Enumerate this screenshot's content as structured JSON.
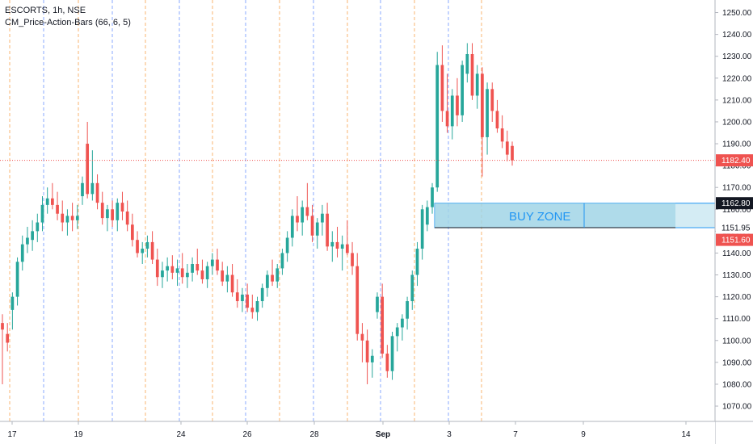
{
  "legend": {
    "symbol_line": "ESCORTS, 1h, NSE",
    "indicator_line": "CM_Price-Action-Bars (66, 6, 5)"
  },
  "colors": {
    "up": "#26a69a",
    "down": "#ef5350",
    "zone_fill": "#9fd4e6",
    "zone_border": "#2196f3",
    "last_price_tag": "#ef5350",
    "zone_top_tag": "#131722",
    "zone_mid_tag": "#ffffff",
    "zone_bottom_tag": "#ef5350",
    "session_line_orange": "#f57c00",
    "session_line_blue": "#2962ff"
  },
  "chart_data": {
    "type": "candlestick",
    "y_axis": {
      "min": 1063,
      "max": 1255,
      "ticks": [
        1070,
        1080,
        1090,
        1100,
        1110,
        1120,
        1130,
        1140,
        1150,
        1160,
        1170,
        1180,
        1190,
        1200,
        1210,
        1220,
        1230,
        1240,
        1250
      ]
    },
    "x_axis_labels": [
      "17",
      "19",
      "24",
      "26",
      "28",
      "Sep",
      "3",
      "7",
      "9",
      "14"
    ],
    "price_tags": {
      "last_price": "1182.40",
      "zone_top": "1162.80",
      "zone_mid": "1151.95",
      "zone_bottom": "1151.60"
    },
    "annotation": {
      "label": "BUY ZONE",
      "top": 1162.8,
      "bottom": 1151.6
    },
    "candles": [
      [
        1108,
        1112,
        1080,
        1105
      ],
      [
        1103,
        1108,
        1095,
        1099
      ],
      [
        1114,
        1122,
        1105,
        1120
      ],
      [
        1120,
        1138,
        1116,
        1136
      ],
      [
        1136,
        1148,
        1132,
        1144
      ],
      [
        1144,
        1152,
        1140,
        1147
      ],
      [
        1146,
        1155,
        1141,
        1150
      ],
      [
        1150,
        1158,
        1145,
        1154
      ],
      [
        1154,
        1166,
        1150,
        1162
      ],
      [
        1162,
        1170,
        1158,
        1165
      ],
      [
        1165,
        1172,
        1160,
        1162
      ],
      [
        1162,
        1168,
        1155,
        1158
      ],
      [
        1158,
        1164,
        1150,
        1154
      ],
      [
        1154,
        1160,
        1148,
        1157
      ],
      [
        1157,
        1163,
        1150,
        1155
      ],
      [
        1155,
        1162,
        1151,
        1157
      ],
      [
        1166,
        1175,
        1162,
        1172
      ],
      [
        1190,
        1200,
        1165,
        1167
      ],
      [
        1167,
        1187,
        1164,
        1172
      ],
      [
        1172,
        1176,
        1160,
        1163
      ],
      [
        1163,
        1168,
        1153,
        1156
      ],
      [
        1156,
        1162,
        1150,
        1160
      ],
      [
        1160,
        1164,
        1152,
        1155
      ],
      [
        1155,
        1165,
        1150,
        1163
      ],
      [
        1163,
        1168,
        1155,
        1159
      ],
      [
        1159,
        1164,
        1150,
        1153
      ],
      [
        1153,
        1158,
        1143,
        1146
      ],
      [
        1146,
        1150,
        1138,
        1140
      ],
      [
        1140,
        1145,
        1135,
        1142
      ],
      [
        1142,
        1148,
        1138,
        1145
      ],
      [
        1145,
        1150,
        1135,
        1137
      ],
      [
        1137,
        1142,
        1125,
        1129
      ],
      [
        1129,
        1136,
        1124,
        1132
      ],
      [
        1132,
        1138,
        1127,
        1134
      ],
      [
        1134,
        1139,
        1128,
        1131
      ],
      [
        1131,
        1137,
        1125,
        1133
      ],
      [
        1133,
        1140,
        1126,
        1129
      ],
      [
        1129,
        1135,
        1124,
        1131
      ],
      [
        1131,
        1138,
        1127,
        1135
      ],
      [
        1135,
        1142,
        1130,
        1132
      ],
      [
        1132,
        1137,
        1126,
        1128
      ],
      [
        1128,
        1136,
        1124,
        1134
      ],
      [
        1134,
        1140,
        1130,
        1137
      ],
      [
        1137,
        1142,
        1130,
        1132
      ],
      [
        1132,
        1136,
        1125,
        1127
      ],
      [
        1127,
        1134,
        1122,
        1130
      ],
      [
        1130,
        1135,
        1120,
        1122
      ],
      [
        1122,
        1128,
        1115,
        1118
      ],
      [
        1118,
        1124,
        1113,
        1121
      ],
      [
        1121,
        1126,
        1113,
        1115
      ],
      [
        1115,
        1121,
        1110,
        1113
      ],
      [
        1113,
        1120,
        1109,
        1118
      ],
      [
        1118,
        1126,
        1115,
        1124
      ],
      [
        1124,
        1132,
        1120,
        1130
      ],
      [
        1130,
        1137,
        1125,
        1127
      ],
      [
        1127,
        1135,
        1124,
        1133
      ],
      [
        1133,
        1142,
        1130,
        1140
      ],
      [
        1140,
        1150,
        1136,
        1147
      ],
      [
        1147,
        1160,
        1143,
        1157
      ],
      [
        1157,
        1166,
        1150,
        1154
      ],
      [
        1154,
        1164,
        1148,
        1161
      ],
      [
        1161,
        1172,
        1155,
        1157
      ],
      [
        1157,
        1162,
        1145,
        1148
      ],
      [
        1148,
        1156,
        1142,
        1154
      ],
      [
        1154,
        1162,
        1148,
        1158
      ],
      [
        1158,
        1163,
        1141,
        1143
      ],
      [
        1143,
        1150,
        1136,
        1145
      ],
      [
        1145,
        1152,
        1138,
        1142
      ],
      [
        1142,
        1148,
        1132,
        1144
      ],
      [
        1144,
        1155,
        1139,
        1140
      ],
      [
        1140,
        1145,
        1130,
        1134
      ],
      [
        1134,
        1140,
        1100,
        1103
      ],
      [
        1103,
        1108,
        1090,
        1100
      ],
      [
        1100,
        1105,
        1080,
        1090
      ],
      [
        1090,
        1096,
        1083,
        1093
      ],
      [
        1113,
        1122,
        1110,
        1120
      ],
      [
        1120,
        1126,
        1092,
        1094
      ],
      [
        1094,
        1098,
        1083,
        1086
      ],
      [
        1086,
        1104,
        1082,
        1102
      ],
      [
        1102,
        1108,
        1095,
        1106
      ],
      [
        1106,
        1112,
        1100,
        1110
      ],
      [
        1110,
        1120,
        1105,
        1118
      ],
      [
        1118,
        1132,
        1114,
        1130
      ],
      [
        1130,
        1145,
        1125,
        1142
      ],
      [
        1142,
        1162,
        1137,
        1160
      ],
      [
        1153,
        1164,
        1150,
        1161
      ],
      [
        1161,
        1172,
        1158,
        1170
      ],
      [
        1170,
        1232,
        1168,
        1226
      ],
      [
        1226,
        1235,
        1200,
        1205
      ],
      [
        1205,
        1222,
        1195,
        1198
      ],
      [
        1198,
        1215,
        1192,
        1212
      ],
      [
        1212,
        1220,
        1198,
        1203
      ],
      [
        1203,
        1228,
        1200,
        1226
      ],
      [
        1222,
        1236,
        1218,
        1231
      ],
      [
        1231,
        1236,
        1210,
        1212
      ],
      [
        1212,
        1226,
        1206,
        1222
      ],
      [
        1222,
        1225,
        1175,
        1193
      ],
      [
        1193,
        1218,
        1185,
        1215
      ],
      [
        1215,
        1218,
        1200,
        1205
      ],
      [
        1205,
        1210,
        1195,
        1197
      ],
      [
        1197,
        1203,
        1188,
        1191
      ],
      [
        1191,
        1196,
        1182,
        1185
      ],
      [
        1189,
        1191,
        1180,
        1182.4
      ]
    ]
  }
}
